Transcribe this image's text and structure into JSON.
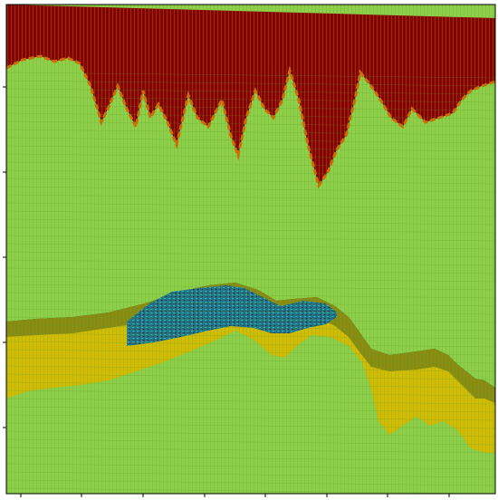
{
  "colors": {
    "background": "#ffffff",
    "frame": "#000000",
    "top_layer": "#8b0000",
    "top_layer_dark": "#5a0000",
    "surface": "#8ed04a",
    "surface_mesh": "#5f9a2e",
    "band_dark": "#2d2a06",
    "band_olive": "#8a8a10",
    "band_yellow": "#e0c400",
    "band_orange": "#d46a00",
    "band_red": "#c00000",
    "lens_blue": "#1e6e8c",
    "lens_cyan": "#22b8c8"
  },
  "icons": {
    "surface": "mesh-surface-graphic"
  }
}
